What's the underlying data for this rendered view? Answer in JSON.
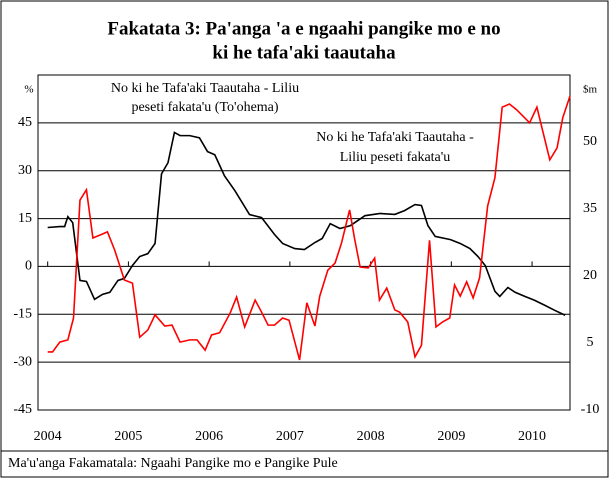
{
  "chart_data": {
    "type": "line",
    "title": [
      "Fakatata 3: Pa'anga 'a e ngaahi pangike mo e no",
      "ki he tafa'aki taautaha"
    ],
    "y_label": "%",
    "y2_label": "$m",
    "annotations": [
      [
        "No ki he Tafa'aki Taautaha - Liliu",
        "peseti fakata'u (To'ohema)"
      ],
      [
        "No ki he Tafa'aki Taautaha -",
        "Liliu peseti fakata'u"
      ]
    ],
    "source": "Ma'u'anga Fakamatala: Ngaahi Pangike mo e Pangike Pule",
    "xlim": [
      2003.88,
      2010.47
    ],
    "xticks": [
      2004,
      2005,
      2006,
      2007,
      2008,
      2009,
      2010
    ],
    "ylim": [
      -45,
      60
    ],
    "yticks": [
      -45,
      -30,
      -15,
      0,
      15,
      30,
      45
    ],
    "y2lim": [
      -10,
      65
    ],
    "y2ticks": [
      -10,
      5,
      20,
      35,
      50
    ],
    "grid": true,
    "series": [
      {
        "color": "#000000",
        "axis": "y",
        "x": [
          2004.0,
          2004.15,
          2004.21,
          2004.25,
          2004.31,
          2004.4,
          2004.48,
          2004.58,
          2004.68,
          2004.77,
          2004.87,
          2004.95,
          2005.05,
          2005.14,
          2005.24,
          2005.33,
          2005.41,
          2005.49,
          2005.57,
          2005.64,
          2005.76,
          2005.88,
          2005.98,
          2006.07,
          2006.19,
          2006.32,
          2006.5,
          2006.65,
          2006.81,
          2006.91,
          2007.06,
          2007.18,
          2007.31,
          2007.4,
          2007.5,
          2007.62,
          2007.75,
          2007.93,
          2008.12,
          2008.3,
          2008.42,
          2008.55,
          2008.63,
          2008.71,
          2008.8,
          2008.99,
          2009.11,
          2009.23,
          2009.33,
          2009.42,
          2009.48,
          2009.54,
          2009.6,
          2009.7,
          2009.79,
          2009.91,
          2010.03,
          2010.16,
          2010.28,
          2010.41
        ],
        "values": [
          12.2,
          12.5,
          12.5,
          15.6,
          13.7,
          -4.4,
          -4.7,
          -10.3,
          -8.75,
          -8.1,
          -4.4,
          -3.75,
          0.3,
          3.1,
          4,
          7.2,
          29,
          32.5,
          42,
          41,
          41,
          40.3,
          36,
          35,
          28.4,
          23.7,
          16.25,
          15.3,
          10,
          7.2,
          5.6,
          5.3,
          7.5,
          8.75,
          13.4,
          11.9,
          12.8,
          15.9,
          16.6,
          16.3,
          17.5,
          19.4,
          19.1,
          12.8,
          9.4,
          8.4,
          7.2,
          5.6,
          3.1,
          0.3,
          -3.75,
          -7.8,
          -9.4,
          -6.6,
          -8.1,
          -9.4,
          -10.6,
          -12.2,
          -13.75,
          -15.3
        ]
      },
      {
        "color": "#ff0000",
        "axis": "y2",
        "x": [
          2004.0,
          2004.06,
          2004.15,
          2004.25,
          2004.32,
          2004.4,
          2004.48,
          2004.56,
          2004.68,
          2004.74,
          2004.83,
          2004.95,
          2005.05,
          2005.14,
          2005.24,
          2005.33,
          2005.45,
          2005.54,
          2005.64,
          2005.76,
          2005.85,
          2005.95,
          2006.03,
          2006.13,
          2006.26,
          2006.34,
          2006.44,
          2006.57,
          2006.65,
          2006.73,
          2006.81,
          2006.91,
          2006.99,
          2007.12,
          2007.21,
          2007.31,
          2007.37,
          2007.47,
          2007.56,
          2007.64,
          2007.74,
          2007.8,
          2007.87,
          2007.97,
          2008.05,
          2008.11,
          2008.2,
          2008.3,
          2008.36,
          2008.46,
          2008.55,
          2008.63,
          2008.73,
          2008.81,
          2008.89,
          2008.98,
          2009.04,
          2009.11,
          2009.19,
          2009.27,
          2009.35,
          2009.45,
          2009.54,
          2009.63,
          2009.72,
          2009.81,
          2009.91,
          2009.97,
          2010.06,
          2010.16,
          2010.22,
          2010.31,
          2010.38,
          2010.47
        ],
        "values": [
          3.0,
          3.0,
          5.2,
          5.7,
          10.6,
          37,
          39.3,
          28.5,
          29.4,
          29.9,
          25.8,
          19.1,
          18.4,
          6.3,
          7.9,
          11.3,
          8.8,
          9,
          5.2,
          5.7,
          5.7,
          3.4,
          6.8,
          7.3,
          11.7,
          15.3,
          8.6,
          14.6,
          11.9,
          9,
          9,
          10.6,
          10.1,
          1.2,
          14,
          8.8,
          15.5,
          21.3,
          22.9,
          27.4,
          34.8,
          28.5,
          22,
          21.8,
          24,
          14.6,
          17.3,
          12.4,
          11.9,
          9.7,
          1.9,
          4.5,
          28,
          8.6,
          9.7,
          10.6,
          18,
          15.5,
          18.7,
          15.1,
          19.6,
          35.7,
          42,
          57.8,
          58.5,
          57.2,
          55.4,
          54.3,
          57.8,
          50.4,
          46,
          48.7,
          55.4,
          60.3
        ]
      }
    ]
  }
}
